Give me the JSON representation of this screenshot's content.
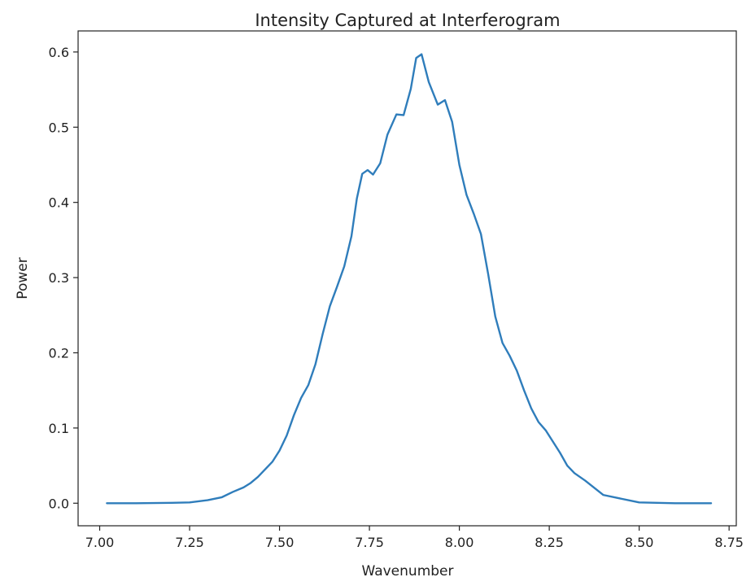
{
  "chart_data": {
    "type": "line",
    "title": "Intensity Captured at Interferogram",
    "xlabel": "Wavenumber",
    "ylabel": "Power",
    "xlim": [
      6.94,
      8.77
    ],
    "ylim": [
      -0.03,
      0.628
    ],
    "xticks": [
      7.0,
      7.25,
      7.5,
      7.75,
      8.0,
      8.25,
      8.5,
      8.75
    ],
    "xtick_labels": [
      "7.00",
      "7.25",
      "7.50",
      "7.75",
      "8.00",
      "8.25",
      "8.50",
      "8.75"
    ],
    "yticks": [
      0.0,
      0.1,
      0.2,
      0.3,
      0.4,
      0.5,
      0.6
    ],
    "ytick_labels": [
      "0.0",
      "0.1",
      "0.2",
      "0.3",
      "0.4",
      "0.5",
      "0.6"
    ],
    "grid": false,
    "line_color": "#2f7dbb",
    "series": [
      {
        "x": [
          7.02,
          7.1,
          7.2,
          7.25,
          7.3,
          7.34,
          7.37,
          7.4,
          7.42,
          7.44,
          7.46,
          7.48,
          7.5,
          7.52,
          7.54,
          7.56,
          7.58,
          7.6,
          7.62,
          7.64,
          7.66,
          7.68,
          7.7,
          7.715,
          7.73,
          7.745,
          7.76,
          7.78,
          7.8,
          7.825,
          7.845,
          7.865,
          7.88,
          7.895,
          7.915,
          7.94,
          7.96,
          7.98,
          8.0,
          8.02,
          8.04,
          8.06,
          8.08,
          8.1,
          8.12,
          8.14,
          8.16,
          8.18,
          8.2,
          8.22,
          8.24,
          8.26,
          8.28,
          8.3,
          8.32,
          8.35,
          8.4,
          8.5,
          8.6,
          8.7
        ],
        "y": [
          0.0,
          0.0,
          0.0005,
          0.001,
          0.004,
          0.008,
          0.015,
          0.021,
          0.027,
          0.035,
          0.045,
          0.055,
          0.07,
          0.09,
          0.117,
          0.14,
          0.157,
          0.185,
          0.225,
          0.262,
          0.288,
          0.315,
          0.355,
          0.405,
          0.438,
          0.443,
          0.437,
          0.452,
          0.49,
          0.517,
          0.516,
          0.551,
          0.592,
          0.597,
          0.56,
          0.53,
          0.536,
          0.507,
          0.45,
          0.41,
          0.385,
          0.358,
          0.305,
          0.248,
          0.213,
          0.196,
          0.176,
          0.15,
          0.126,
          0.108,
          0.097,
          0.082,
          0.067,
          0.05,
          0.04,
          0.03,
          0.011,
          0.001,
          0.0,
          0.0
        ]
      }
    ]
  }
}
